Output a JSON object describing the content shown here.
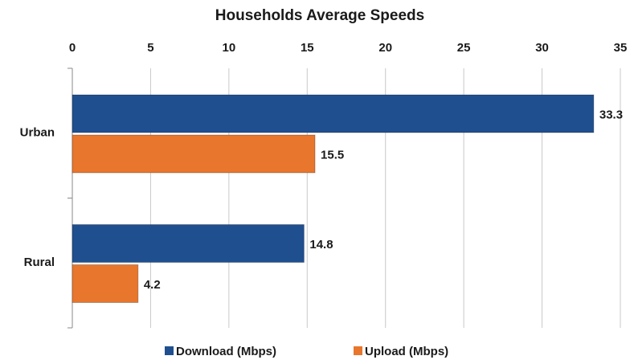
{
  "chart_data": {
    "type": "hbar",
    "title": "Households Average Speeds",
    "categories": [
      "Urban",
      "Rural"
    ],
    "series": [
      {
        "name": "Download (Mbps)",
        "color": "#1f4f8f",
        "values": [
          33.3,
          14.8
        ]
      },
      {
        "name": "Upload (Mbps)",
        "color": "#e8762c",
        "values": [
          15.5,
          4.2
        ]
      }
    ],
    "xlim": [
      0,
      35
    ],
    "xticks": [
      0,
      5,
      10,
      15,
      20,
      25,
      30,
      35
    ],
    "grid": true,
    "legend": "bottom"
  }
}
